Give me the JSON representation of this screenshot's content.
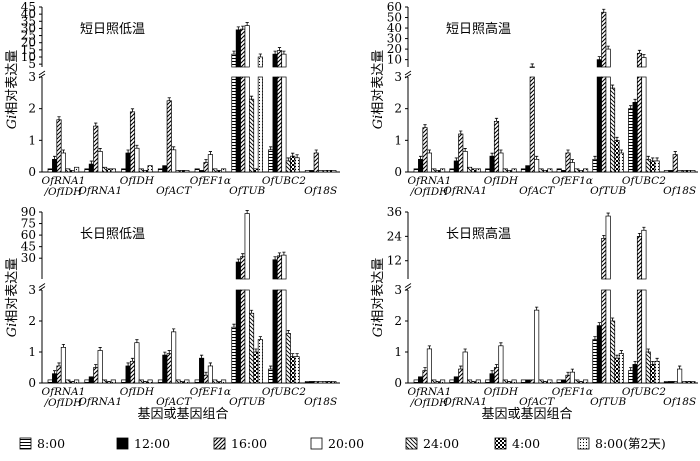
{
  "figure": {
    "xlabel": "基因或基因组合",
    "ylabel": "Gi相对表达量",
    "ylabel_italic": "Gi",
    "ylabel_rest": "相对表达量"
  },
  "legend": [
    {
      "label": "8:00",
      "pattern": "hlines"
    },
    {
      "label": "12:00",
      "pattern": "solid"
    },
    {
      "label": "16:00",
      "pattern": "diag"
    },
    {
      "label": "20:00",
      "pattern": "open"
    },
    {
      "label": "24:00",
      "pattern": "bslash"
    },
    {
      "label": "4:00",
      "pattern": "checker"
    },
    {
      "label": "8:00(第2天)",
      "pattern": "dots"
    }
  ],
  "chart_data": [
    {
      "type": "bar",
      "title": "短日照低温",
      "categories": [
        "OfRNA1/OfIDH",
        "OfRNA1",
        "OfIDH",
        "OfACT",
        "OfEF1α",
        "OfTUB",
        "OfUBC2",
        "Of18S"
      ],
      "lower_ticks": [
        0,
        1,
        2,
        3
      ],
      "upper_ticks": [
        5,
        10,
        15,
        20,
        25,
        30,
        35,
        40,
        45
      ],
      "lower_max": 3,
      "upper_min": 3,
      "upper_max": 45,
      "series": [
        {
          "name": "8:00",
          "values": [
            0.1,
            0.1,
            0.1,
            0.1,
            0.1,
            12,
            0.7,
            0.05
          ]
        },
        {
          "name": "12:00",
          "values": [
            0.4,
            0.25,
            0.6,
            0.2,
            0.05,
            29,
            12,
            0.05
          ]
        },
        {
          "name": "16:00",
          "values": [
            1.65,
            1.45,
            1.9,
            2.25,
            0.3,
            29.5,
            14.5,
            0.6
          ]
        },
        {
          "name": "20:00",
          "values": [
            0.6,
            0.65,
            0.75,
            0.7,
            0.55,
            32,
            12,
            0.05
          ]
        },
        {
          "name": "24:00",
          "values": [
            0.1,
            0.15,
            0.1,
            0.05,
            0.1,
            2.3,
            0.35,
            0.05
          ]
        },
        {
          "name": "4:00",
          "values": [
            0.05,
            0.1,
            0.05,
            0.05,
            0.05,
            0.1,
            0.5,
            0.05
          ]
        },
        {
          "name": "8:00(第2天)",
          "values": [
            0.15,
            0.1,
            0.2,
            0.05,
            0.1,
            10,
            0.45,
            0.05
          ]
        }
      ]
    },
    {
      "type": "bar",
      "title": "短日照高温",
      "categories": [
        "OfRNA1/OfIDH",
        "OfRNA1",
        "OfIDH",
        "OfACT",
        "OfEF1α",
        "OfTUB",
        "OfUBC2",
        "Of18S"
      ],
      "lower_ticks": [
        0,
        1,
        2,
        3
      ],
      "upper_ticks": [
        10,
        20,
        30,
        40,
        50,
        60
      ],
      "lower_max": 3,
      "upper_min": 3,
      "upper_max": 60,
      "series": [
        {
          "name": "8:00",
          "values": [
            0.1,
            0.1,
            0.1,
            0.1,
            0.1,
            0.4,
            2.0,
            0.05
          ]
        },
        {
          "name": "12:00",
          "values": [
            0.4,
            0.35,
            0.5,
            0.2,
            0.05,
            10,
            2.2,
            0.05
          ]
        },
        {
          "name": "16:00",
          "values": [
            1.4,
            1.2,
            1.6,
            3.05,
            0.6,
            55,
            16,
            0.55
          ]
        },
        {
          "name": "20:00",
          "values": [
            0.6,
            0.65,
            0.6,
            0.4,
            0.3,
            20,
            12,
            0.05
          ]
        },
        {
          "name": "24:00",
          "values": [
            0.1,
            0.15,
            0.1,
            0.1,
            0.1,
            2.65,
            0.4,
            0.05
          ]
        },
        {
          "name": "4:00",
          "values": [
            0.05,
            0.1,
            0.05,
            0.05,
            0.05,
            1.0,
            0.35,
            0.05
          ]
        },
        {
          "name": "8:00(第2天)",
          "values": [
            0.1,
            0.1,
            0.1,
            0.1,
            0.1,
            0.6,
            0.35,
            0.05
          ]
        }
      ]
    },
    {
      "type": "bar",
      "title": "长日照低温",
      "categories": [
        "OfRNA1/OfIDH",
        "OfRNA1",
        "OfIDH",
        "OfACT",
        "OfEF1α",
        "OfTUB",
        "OfUBC2",
        "Of18S"
      ],
      "lower_ticks": [
        0,
        1,
        2,
        3
      ],
      "upper_ticks": [
        30,
        45,
        60,
        75,
        90
      ],
      "lower_max": 3,
      "upper_min": 3,
      "upper_max": 90,
      "series": [
        {
          "name": "8:00",
          "values": [
            0.1,
            0.1,
            0.1,
            0.1,
            0.1,
            1.8,
            0.45,
            0.05
          ]
        },
        {
          "name": "12:00",
          "values": [
            0.3,
            0.2,
            0.55,
            0.9,
            0.8,
            25,
            28,
            0.05
          ]
        },
        {
          "name": "16:00",
          "values": [
            0.55,
            0.5,
            0.7,
            0.95,
            0.25,
            32,
            33,
            0.05
          ]
        },
        {
          "name": "20:00",
          "values": [
            1.15,
            1.05,
            1.3,
            1.65,
            0.55,
            88,
            34,
            0.05
          ]
        },
        {
          "name": "24:00",
          "values": [
            0.1,
            0.1,
            0.1,
            0.1,
            0.1,
            2.25,
            1.6,
            0.05
          ]
        },
        {
          "name": "4:00",
          "values": [
            0.05,
            0.05,
            0.05,
            0.05,
            0.05,
            1.0,
            0.85,
            0.05
          ]
        },
        {
          "name": "8:00(第2天)",
          "values": [
            0.1,
            0.1,
            0.1,
            0.1,
            0.1,
            1.4,
            0.85,
            0.05
          ]
        }
      ]
    },
    {
      "type": "bar",
      "title": "长日照高温",
      "categories": [
        "OfRNA1/OfIDH",
        "OfRNA1",
        "OfIDH",
        "OfACT",
        "OfEF1α",
        "OfTUB",
        "OfUBC2",
        "Of18S"
      ],
      "lower_ticks": [
        0,
        1,
        2,
        3
      ],
      "upper_ticks": [
        12,
        24,
        36
      ],
      "lower_max": 3,
      "upper_min": 3,
      "upper_max": 36,
      "series": [
        {
          "name": "8:00",
          "values": [
            0.1,
            0.1,
            0.1,
            0.1,
            0.1,
            1.4,
            0.4,
            0.05
          ]
        },
        {
          "name": "12:00",
          "values": [
            0.2,
            0.2,
            0.3,
            0.1,
            0.1,
            1.85,
            0.6,
            0.05
          ]
        },
        {
          "name": "16:00",
          "values": [
            0.4,
            0.45,
            0.5,
            0.1,
            0.25,
            23,
            24,
            0.05
          ]
        },
        {
          "name": "20:00",
          "values": [
            1.1,
            1.0,
            1.2,
            2.35,
            0.35,
            34,
            27,
            0.45
          ]
        },
        {
          "name": "24:00",
          "values": [
            0.1,
            0.1,
            0.1,
            0.1,
            0.1,
            2.0,
            1.0,
            0.05
          ]
        },
        {
          "name": "4:00",
          "values": [
            0.05,
            0.05,
            0.05,
            0.05,
            0.05,
            0.8,
            0.6,
            0.05
          ]
        },
        {
          "name": "8:00(第2天)",
          "values": [
            0.1,
            0.1,
            0.1,
            0.1,
            0.1,
            0.95,
            0.7,
            0.05
          ]
        }
      ]
    }
  ]
}
